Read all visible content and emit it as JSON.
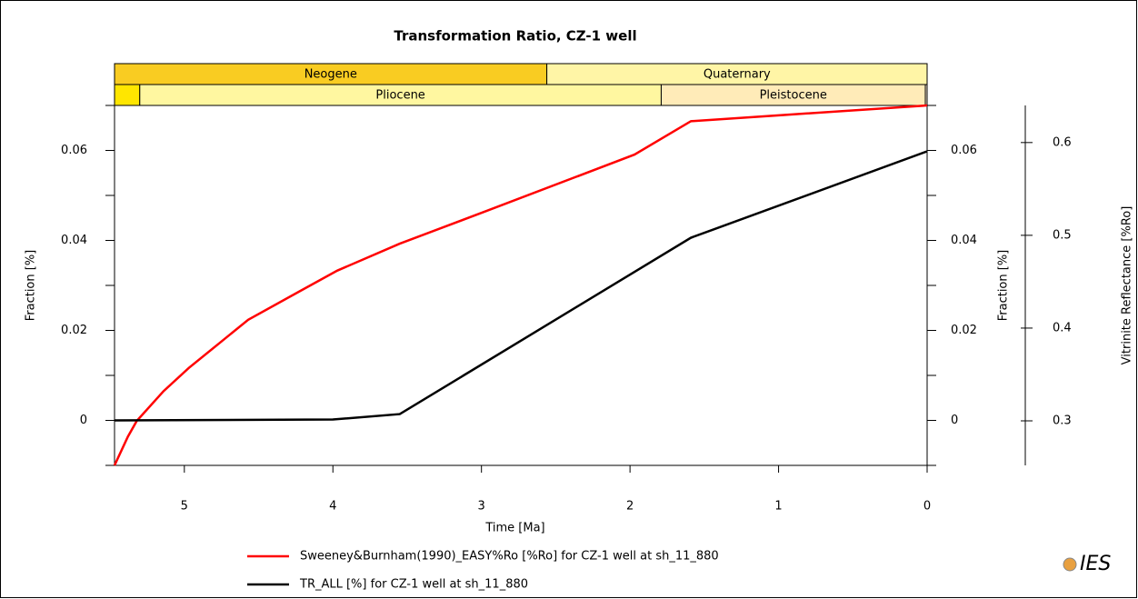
{
  "chart_data": {
    "type": "line",
    "title": "Transformation Ratio, CZ-1 well",
    "x_label": "Time [Ma]",
    "y_label": "Fraction [%]",
    "y_right_label": "Fraction [%]",
    "y2_label": "Vitrinite Reflectance [%Ro]",
    "xlim": [
      5.47,
      0
    ],
    "xticks": [
      5,
      4,
      3,
      2,
      1,
      0
    ],
    "ylim": [
      -0.01,
      0.07
    ],
    "yticks": [
      0,
      0.02,
      0.04,
      0.06
    ],
    "yminor": [
      -0.01,
      0.01,
      0.03,
      0.05,
      0.07
    ],
    "y2lim": [
      0.252,
      0.64
    ],
    "y2ticks": [
      0.3,
      0.4,
      0.5,
      0.6
    ],
    "timescale": [
      [
        {
          "name": "Neogene",
          "from": 5.47,
          "to": 2.56,
          "color": "#f9cc22"
        },
        {
          "name": "Quaternary",
          "from": 2.56,
          "to": 0,
          "color": "#fff5a6"
        }
      ],
      [
        {
          "from": 5.47,
          "to": 5.3,
          "color": "#ffe600"
        },
        {
          "name": "Pliocene",
          "from": 5.3,
          "to": 1.79,
          "color": "#fff7a0"
        },
        {
          "name": "Pleistocene",
          "from": 1.79,
          "to": 0.012,
          "color": "#ffebb8"
        },
        {
          "from": 0.012,
          "to": 0,
          "color": "#fff0d8"
        }
      ]
    ],
    "series": [
      {
        "name": "Sweeney&Burnham(1990)_EASY%Ro [%Ro] for CZ-1 well at sh_11_880",
        "color": "#ff0000",
        "axis": "y2",
        "x": [
          5.47,
          5.38,
          5.32,
          5.14,
          4.97,
          4.77,
          4.57,
          4.22,
          3.97,
          3.55,
          2.97,
          1.97,
          1.59,
          0
        ],
        "values": [
          0.252,
          0.283,
          0.3,
          0.332,
          0.357,
          0.383,
          0.409,
          0.44,
          0.462,
          0.491,
          0.526,
          0.587,
          0.623,
          0.64
        ]
      },
      {
        "name": "TR_ALL [%] for CZ-1 well at sh_11_880",
        "color": "#000000",
        "x": [
          5.47,
          4.0,
          3.55,
          1.59,
          0
        ],
        "values": [
          0,
          0.0002,
          0.0014,
          0.0406,
          0.0598
        ]
      }
    ],
    "logo": "IES"
  }
}
